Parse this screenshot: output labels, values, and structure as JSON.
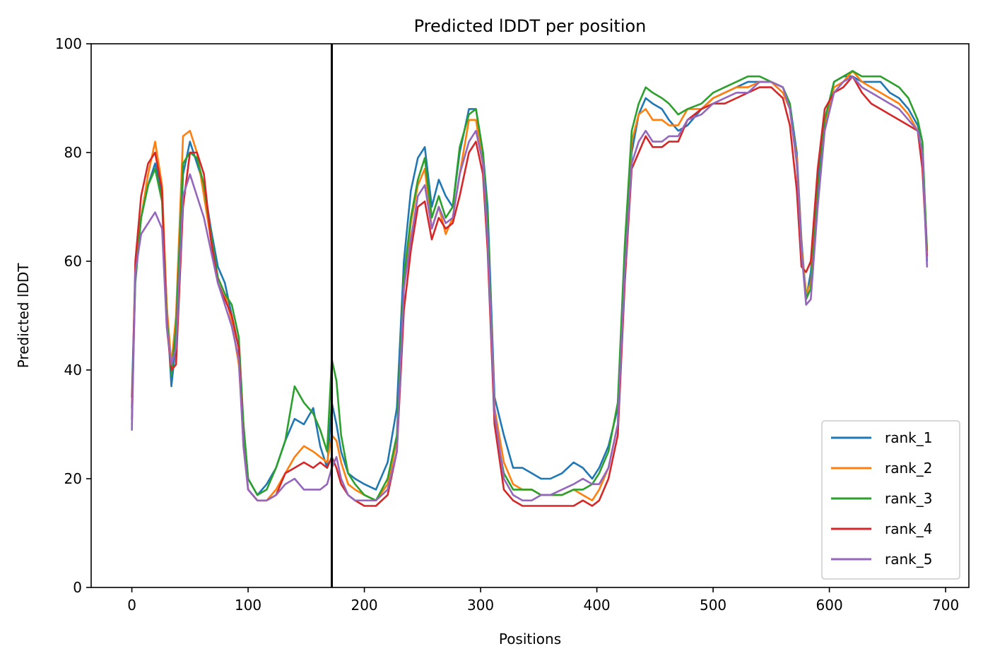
{
  "chart_data": {
    "type": "line",
    "title": "Predicted lDDT per position",
    "xlabel": "Positions",
    "ylabel": "Predicted lDDT",
    "xlim": [
      -35,
      720
    ],
    "ylim": [
      0,
      100
    ],
    "xticks": [
      0,
      100,
      200,
      300,
      400,
      500,
      600,
      700
    ],
    "yticks": [
      0,
      20,
      40,
      60,
      80,
      100
    ],
    "grid": false,
    "legend_position": "lower-right",
    "vline": 172,
    "series": [
      {
        "name": "rank_1",
        "color": "#1f77b4",
        "x": [
          0,
          3,
          8,
          14,
          20,
          26,
          30,
          34,
          38,
          44,
          50,
          56,
          62,
          68,
          74,
          80,
          86,
          92,
          96,
          100,
          108,
          116,
          124,
          132,
          140,
          148,
          156,
          162,
          168,
          172,
          176,
          180,
          186,
          192,
          200,
          210,
          220,
          228,
          234,
          240,
          246,
          252,
          258,
          264,
          270,
          276,
          282,
          290,
          296,
          302,
          306,
          312,
          320,
          328,
          336,
          344,
          352,
          360,
          370,
          380,
          388,
          396,
          402,
          410,
          418,
          424,
          430,
          436,
          442,
          448,
          456,
          462,
          470,
          478,
          490,
          500,
          510,
          520,
          530,
          540,
          550,
          560,
          566,
          572,
          576,
          580,
          584,
          590,
          596,
          604,
          612,
          620,
          628,
          636,
          644,
          652,
          660,
          668,
          676,
          680,
          684
        ],
        "y": [
          35,
          58,
          68,
          74,
          78,
          72,
          52,
          37,
          45,
          76,
          82,
          78,
          74,
          66,
          59,
          56,
          50,
          44,
          30,
          20,
          17,
          19,
          22,
          27,
          31,
          30,
          33,
          26,
          22,
          34,
          30,
          25,
          21,
          20,
          19,
          18,
          23,
          33,
          60,
          73,
          79,
          81,
          70,
          75,
          72,
          70,
          80,
          88,
          88,
          80,
          70,
          35,
          28,
          22,
          22,
          21,
          20,
          20,
          21,
          23,
          22,
          20,
          22,
          26,
          33,
          62,
          80,
          87,
          90,
          89,
          88,
          86,
          84,
          85,
          88,
          90,
          91,
          92,
          93,
          93,
          93,
          92,
          89,
          80,
          64,
          53,
          58,
          75,
          86,
          93,
          94,
          94,
          93,
          93,
          93,
          91,
          90,
          88,
          85,
          82,
          60
        ]
      },
      {
        "name": "rank_2",
        "color": "#ff7f0e",
        "x": [
          0,
          3,
          8,
          14,
          20,
          26,
          30,
          34,
          38,
          44,
          50,
          56,
          62,
          68,
          74,
          80,
          86,
          92,
          96,
          100,
          108,
          116,
          124,
          132,
          140,
          148,
          156,
          162,
          168,
          172,
          176,
          180,
          186,
          192,
          200,
          210,
          220,
          228,
          234,
          240,
          246,
          252,
          258,
          264,
          270,
          276,
          282,
          290,
          296,
          302,
          306,
          312,
          320,
          328,
          336,
          344,
          352,
          360,
          370,
          380,
          388,
          396,
          402,
          410,
          418,
          424,
          430,
          436,
          442,
          448,
          456,
          462,
          470,
          478,
          490,
          500,
          510,
          520,
          530,
          540,
          550,
          560,
          566,
          572,
          576,
          580,
          584,
          590,
          596,
          604,
          612,
          620,
          628,
          636,
          644,
          652,
          660,
          668,
          676,
          680,
          684
        ],
        "y": [
          30,
          58,
          68,
          76,
          82,
          74,
          52,
          41,
          50,
          83,
          84,
          80,
          72,
          64,
          57,
          54,
          49,
          41,
          28,
          18,
          16,
          16,
          18,
          21,
          24,
          26,
          25,
          24,
          23,
          28,
          27,
          23,
          19,
          18,
          17,
          16,
          19,
          27,
          55,
          67,
          74,
          77,
          66,
          70,
          65,
          68,
          76,
          86,
          86,
          78,
          66,
          33,
          23,
          19,
          18,
          18,
          17,
          17,
          17,
          18,
          17,
          16,
          18,
          22,
          30,
          59,
          82,
          87,
          88,
          86,
          86,
          85,
          85,
          88,
          88,
          90,
          91,
          92,
          92,
          93,
          93,
          91,
          88,
          79,
          63,
          54,
          56,
          72,
          85,
          92,
          93,
          95,
          93,
          92,
          91,
          90,
          89,
          87,
          84,
          80,
          62
        ]
      },
      {
        "name": "rank_3",
        "color": "#2ca02c",
        "x": [
          0,
          3,
          8,
          14,
          20,
          26,
          30,
          34,
          38,
          44,
          50,
          56,
          62,
          68,
          74,
          80,
          86,
          92,
          96,
          100,
          108,
          116,
          124,
          132,
          140,
          148,
          156,
          162,
          168,
          172,
          176,
          180,
          186,
          192,
          200,
          210,
          220,
          228,
          234,
          240,
          246,
          252,
          258,
          264,
          270,
          276,
          282,
          290,
          296,
          302,
          306,
          312,
          320,
          328,
          336,
          344,
          352,
          360,
          370,
          380,
          388,
          396,
          402,
          410,
          418,
          424,
          430,
          436,
          442,
          448,
          456,
          462,
          470,
          478,
          490,
          500,
          510,
          520,
          530,
          540,
          550,
          560,
          566,
          572,
          576,
          580,
          584,
          590,
          596,
          604,
          612,
          620,
          628,
          636,
          644,
          652,
          660,
          668,
          676,
          680,
          684
        ],
        "y": [
          33,
          56,
          68,
          74,
          77,
          71,
          50,
          39,
          48,
          78,
          80,
          79,
          74,
          65,
          57,
          54,
          52,
          46,
          30,
          20,
          17,
          18,
          22,
          27,
          37,
          34,
          32,
          29,
          25,
          42,
          38,
          28,
          21,
          19,
          17,
          16,
          20,
          28,
          57,
          68,
          75,
          79,
          68,
          72,
          68,
          70,
          81,
          87,
          88,
          80,
          68,
          30,
          21,
          18,
          18,
          18,
          17,
          17,
          17,
          18,
          18,
          19,
          21,
          25,
          34,
          63,
          84,
          89,
          92,
          91,
          90,
          89,
          87,
          88,
          89,
          91,
          92,
          93,
          94,
          94,
          93,
          92,
          89,
          78,
          62,
          53,
          55,
          72,
          86,
          93,
          94,
          95,
          94,
          94,
          94,
          93,
          92,
          90,
          86,
          82,
          62
        ]
      },
      {
        "name": "rank_4",
        "color": "#d62728",
        "x": [
          0,
          3,
          8,
          14,
          20,
          26,
          30,
          34,
          38,
          44,
          50,
          56,
          62,
          68,
          74,
          80,
          86,
          92,
          96,
          100,
          108,
          116,
          124,
          132,
          140,
          148,
          156,
          162,
          168,
          172,
          176,
          180,
          186,
          192,
          200,
          210,
          220,
          228,
          234,
          240,
          246,
          252,
          258,
          264,
          270,
          276,
          282,
          290,
          296,
          302,
          306,
          312,
          320,
          328,
          336,
          344,
          352,
          360,
          370,
          380,
          388,
          396,
          402,
          410,
          418,
          424,
          430,
          436,
          442,
          448,
          456,
          462,
          470,
          478,
          490,
          500,
          510,
          520,
          530,
          540,
          550,
          560,
          566,
          572,
          576,
          580,
          584,
          590,
          596,
          604,
          612,
          620,
          628,
          636,
          644,
          652,
          660,
          668,
          676,
          680,
          684
        ],
        "y": [
          31,
          60,
          72,
          78,
          80,
          73,
          48,
          40,
          41,
          70,
          80,
          80,
          76,
          64,
          56,
          53,
          50,
          44,
          26,
          18,
          16,
          16,
          17,
          21,
          22,
          23,
          22,
          23,
          22,
          24,
          22,
          19,
          17,
          16,
          15,
          15,
          17,
          25,
          51,
          62,
          70,
          71,
          64,
          68,
          66,
          67,
          72,
          80,
          82,
          76,
          62,
          30,
          18,
          16,
          15,
          15,
          15,
          15,
          15,
          15,
          16,
          15,
          16,
          20,
          28,
          56,
          77,
          80,
          83,
          81,
          81,
          82,
          82,
          86,
          88,
          89,
          89,
          90,
          91,
          92,
          92,
          90,
          85,
          73,
          59,
          58,
          60,
          77,
          88,
          91,
          92,
          94,
          91,
          89,
          88,
          87,
          86,
          85,
          84,
          77,
          61
        ]
      },
      {
        "name": "rank_5",
        "color": "#9467bd",
        "x": [
          0,
          3,
          8,
          14,
          20,
          26,
          30,
          34,
          38,
          44,
          50,
          56,
          62,
          68,
          74,
          80,
          86,
          92,
          96,
          100,
          108,
          116,
          124,
          132,
          140,
          148,
          156,
          162,
          168,
          172,
          176,
          180,
          186,
          192,
          200,
          210,
          220,
          228,
          234,
          240,
          246,
          252,
          258,
          264,
          270,
          276,
          282,
          290,
          296,
          302,
          306,
          312,
          320,
          328,
          336,
          344,
          352,
          360,
          370,
          380,
          388,
          396,
          402,
          410,
          418,
          424,
          430,
          436,
          442,
          448,
          456,
          462,
          470,
          478,
          490,
          500,
          510,
          520,
          530,
          540,
          550,
          560,
          566,
          572,
          576,
          580,
          584,
          590,
          596,
          604,
          612,
          620,
          628,
          636,
          644,
          652,
          660,
          668,
          676,
          680,
          684
        ],
        "y": [
          29,
          58,
          65,
          67,
          69,
          66,
          48,
          41,
          44,
          72,
          76,
          72,
          68,
          62,
          56,
          52,
          48,
          42,
          26,
          18,
          16,
          16,
          17,
          19,
          20,
          18,
          18,
          18,
          19,
          22,
          24,
          20,
          17,
          16,
          16,
          16,
          18,
          25,
          55,
          64,
          72,
          74,
          66,
          70,
          67,
          68,
          76,
          82,
          84,
          78,
          64,
          32,
          20,
          17,
          16,
          16,
          17,
          17,
          18,
          19,
          20,
          19,
          19,
          22,
          30,
          58,
          78,
          82,
          84,
          82,
          82,
          83,
          83,
          86,
          87,
          89,
          90,
          91,
          91,
          93,
          93,
          92,
          88,
          78,
          62,
          52,
          53,
          70,
          84,
          91,
          93,
          94,
          92,
          91,
          90,
          89,
          88,
          86,
          84,
          80,
          59
        ]
      }
    ]
  }
}
